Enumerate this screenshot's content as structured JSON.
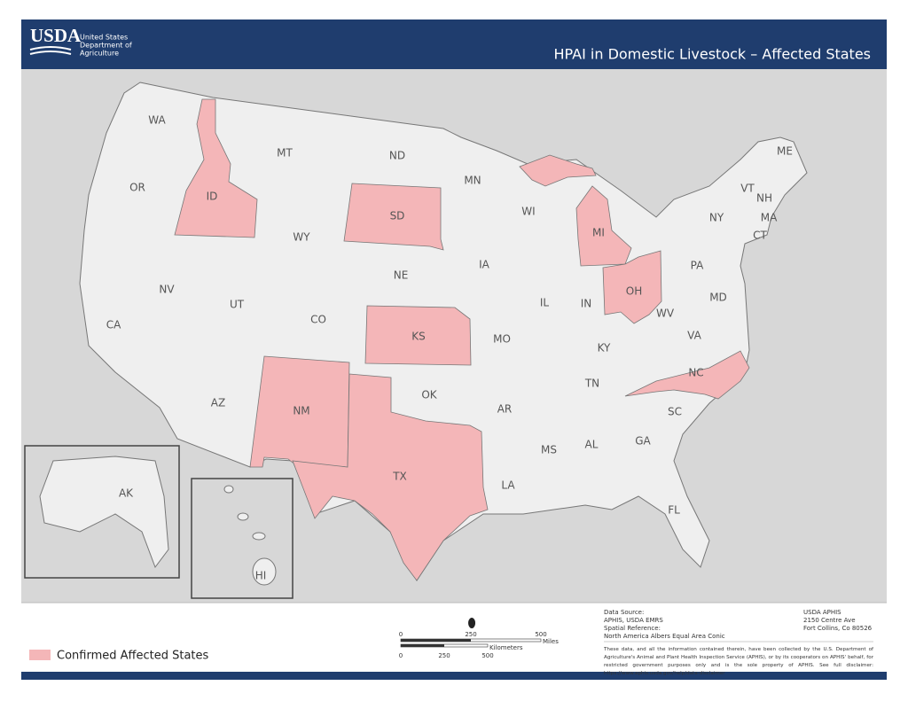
{
  "header": {
    "logo": "USDA",
    "agency": [
      "United States",
      "Department of",
      "Agriculture"
    ],
    "title": "HPAI in Domestic Livestock – Affected States"
  },
  "map": {
    "affected_color": "#f4b6b8",
    "states": [
      {
        "label": "WA",
        "affected": false
      },
      {
        "label": "OR",
        "affected": false
      },
      {
        "label": "CA",
        "affected": false
      },
      {
        "label": "ID",
        "affected": true
      },
      {
        "label": "NV",
        "affected": false
      },
      {
        "label": "UT",
        "affected": false
      },
      {
        "label": "AZ",
        "affected": false
      },
      {
        "label": "MT",
        "affected": false
      },
      {
        "label": "WY",
        "affected": false
      },
      {
        "label": "CO",
        "affected": false
      },
      {
        "label": "NM",
        "affected": true
      },
      {
        "label": "ND",
        "affected": false
      },
      {
        "label": "SD",
        "affected": true
      },
      {
        "label": "NE",
        "affected": false
      },
      {
        "label": "KS",
        "affected": true
      },
      {
        "label": "OK",
        "affected": false
      },
      {
        "label": "TX",
        "affected": true
      },
      {
        "label": "MN",
        "affected": false
      },
      {
        "label": "IA",
        "affected": false
      },
      {
        "label": "MO",
        "affected": false
      },
      {
        "label": "AR",
        "affected": false
      },
      {
        "label": "LA",
        "affected": false
      },
      {
        "label": "WI",
        "affected": false
      },
      {
        "label": "IL",
        "affected": false
      },
      {
        "label": "MS",
        "affected": false
      },
      {
        "label": "MI",
        "affected": true
      },
      {
        "label": "IN",
        "affected": false
      },
      {
        "label": "KY",
        "affected": false
      },
      {
        "label": "TN",
        "affected": false
      },
      {
        "label": "AL",
        "affected": false
      },
      {
        "label": "OH",
        "affected": true
      },
      {
        "label": "GA",
        "affected": false
      },
      {
        "label": "FL",
        "affected": false
      },
      {
        "label": "SC",
        "affected": false
      },
      {
        "label": "NC",
        "affected": true
      },
      {
        "label": "VA",
        "affected": false
      },
      {
        "label": "WV",
        "affected": false
      },
      {
        "label": "PA",
        "affected": false
      },
      {
        "label": "NY",
        "affected": false
      },
      {
        "label": "ME",
        "affected": false
      },
      {
        "label": "VT",
        "affected": false
      },
      {
        "label": "NH",
        "affected": false
      },
      {
        "label": "MA",
        "affected": false
      },
      {
        "label": "CT",
        "affected": false
      },
      {
        "label": "MD",
        "affected": false
      },
      {
        "label": "AK",
        "affected": false
      },
      {
        "label": "HI",
        "affected": false
      }
    ]
  },
  "legend": {
    "label": "Confirmed Affected States"
  },
  "scale": {
    "miles": [
      0,
      250,
      500
    ],
    "miles_unit": "Miles",
    "km": [
      0,
      250,
      500
    ],
    "km_unit": "Kilometers"
  },
  "footer": {
    "source_title": "Data Source:",
    "source": "APHIS, USDA EMRS",
    "reference_title": "Spatial Reference:",
    "reference": "North America Albers Equal Area Conic",
    "address": [
      "USDA APHIS",
      "2150 Centre Ave",
      "Fort Collins, Co 80526"
    ],
    "disclaimer": "These data, and all the information contained therein, have been collected by the U.S. Department of Agriculture's Animal and Plant Health Inspection Service (APHIS), or by its cooperators on APHIS' behalf, for restricted government purposes only and is the sole property of APHIS. See full disclaimer: https://www.aphis.usda.gov/help/data-disclaimer"
  }
}
